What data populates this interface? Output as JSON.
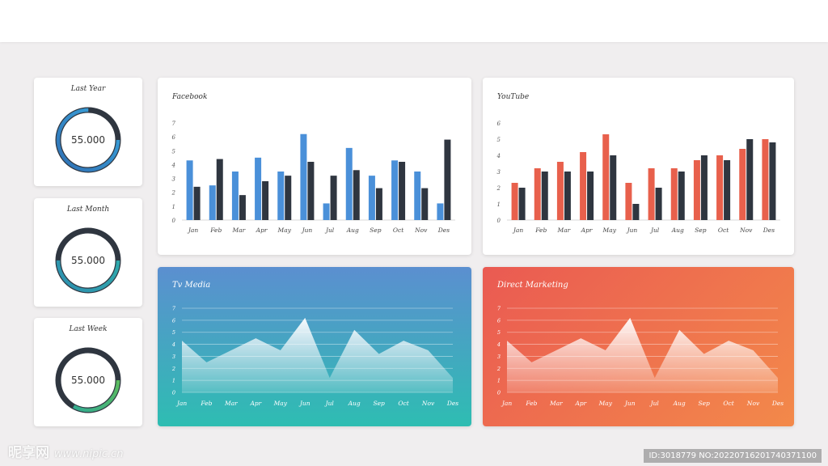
{
  "kpis": [
    {
      "title": "Last Year",
      "value": "55.000",
      "progress": 0.75,
      "color_start": "#2f6fb3",
      "color_end": "#3aa7de"
    },
    {
      "title": "Last Month",
      "value": "55.000",
      "progress": 0.5,
      "color_start": "#2d8fb0",
      "color_end": "#2fb1a9"
    },
    {
      "title": "Last Week",
      "value": "55.000",
      "progress": 0.33,
      "color_start": "#2aa89a",
      "color_end": "#6cc24a"
    }
  ],
  "watermark": {
    "brand": "昵享网",
    "site": "www.nipic.cn",
    "id_text": "ID:3018779 NO:20220716201740371100"
  },
  "chart_data": [
    {
      "id": "facebook",
      "type": "bar",
      "title": "Facebook",
      "categories": [
        "Jan",
        "Feb",
        "Mar",
        "Apr",
        "May",
        "Jun",
        "Jul",
        "Aug",
        "Sep",
        "Oct",
        "Nov",
        "Des"
      ],
      "ylim": [
        0,
        7
      ],
      "yticks": [
        0,
        1,
        2,
        3,
        4,
        5,
        6,
        7
      ],
      "series": [
        {
          "values": [
            4.3,
            2.5,
            3.5,
            4.5,
            3.5,
            6.2,
            1.2,
            5.2,
            3.2,
            4.3,
            3.5,
            1.2
          ],
          "color": "#4a90d9"
        },
        {
          "values": [
            2.4,
            4.4,
            1.8,
            2.8,
            3.2,
            4.2,
            3.2,
            3.6,
            2.3,
            4.2,
            2.3,
            5.8
          ],
          "color": "#2f3640"
        }
      ]
    },
    {
      "id": "youtube",
      "type": "bar",
      "title": "YouTube",
      "categories": [
        "Jan",
        "Feb",
        "Mar",
        "Apr",
        "May",
        "Jun",
        "Jul",
        "Aug",
        "Sep",
        "Oct",
        "Nov",
        "Des"
      ],
      "ylim": [
        0,
        6
      ],
      "yticks": [
        0,
        1,
        2,
        3,
        4,
        5,
        6
      ],
      "series": [
        {
          "values": [
            2.3,
            3.2,
            3.6,
            4.2,
            5.3,
            2.3,
            3.2,
            3.2,
            3.7,
            4.0,
            4.4,
            5.0
          ],
          "color": "#e8604c"
        },
        {
          "values": [
            2.0,
            3.0,
            3.0,
            3.0,
            4.0,
            1.0,
            2.0,
            3.0,
            4.0,
            3.7,
            5.0,
            4.8
          ],
          "color": "#2f3640"
        }
      ]
    },
    {
      "id": "tv-media",
      "type": "area",
      "title": "Tv Media",
      "categories": [
        "Jan",
        "Feb",
        "Mar",
        "Apr",
        "May",
        "Jun",
        "Jul",
        "Aug",
        "Sep",
        "Oct",
        "Nov",
        "Des"
      ],
      "ylim": [
        0,
        7
      ],
      "yticks": [
        0,
        1,
        2,
        3,
        4,
        5,
        6,
        7
      ],
      "values": [
        4.3,
        2.5,
        3.5,
        4.5,
        3.5,
        6.2,
        1.2,
        5.2,
        3.2,
        4.3,
        3.5,
        1.2
      ],
      "bg_start": "#5b8fd0",
      "bg_end": "#2ebdb2"
    },
    {
      "id": "direct-marketing",
      "type": "area",
      "title": "Direct Marketing",
      "categories": [
        "Jan",
        "Feb",
        "Mar",
        "Apr",
        "May",
        "Jun",
        "Jul",
        "Aug",
        "Sep",
        "Oct",
        "Nov",
        "Des"
      ],
      "ylim": [
        0,
        7
      ],
      "yticks": [
        0,
        1,
        2,
        3,
        4,
        5,
        6,
        7
      ],
      "values": [
        4.3,
        2.5,
        3.5,
        4.5,
        3.5,
        6.2,
        1.2,
        5.2,
        3.2,
        4.3,
        3.5,
        1.2
      ],
      "bg_start": "#ea5a52",
      "bg_end": "#f3894a"
    }
  ]
}
